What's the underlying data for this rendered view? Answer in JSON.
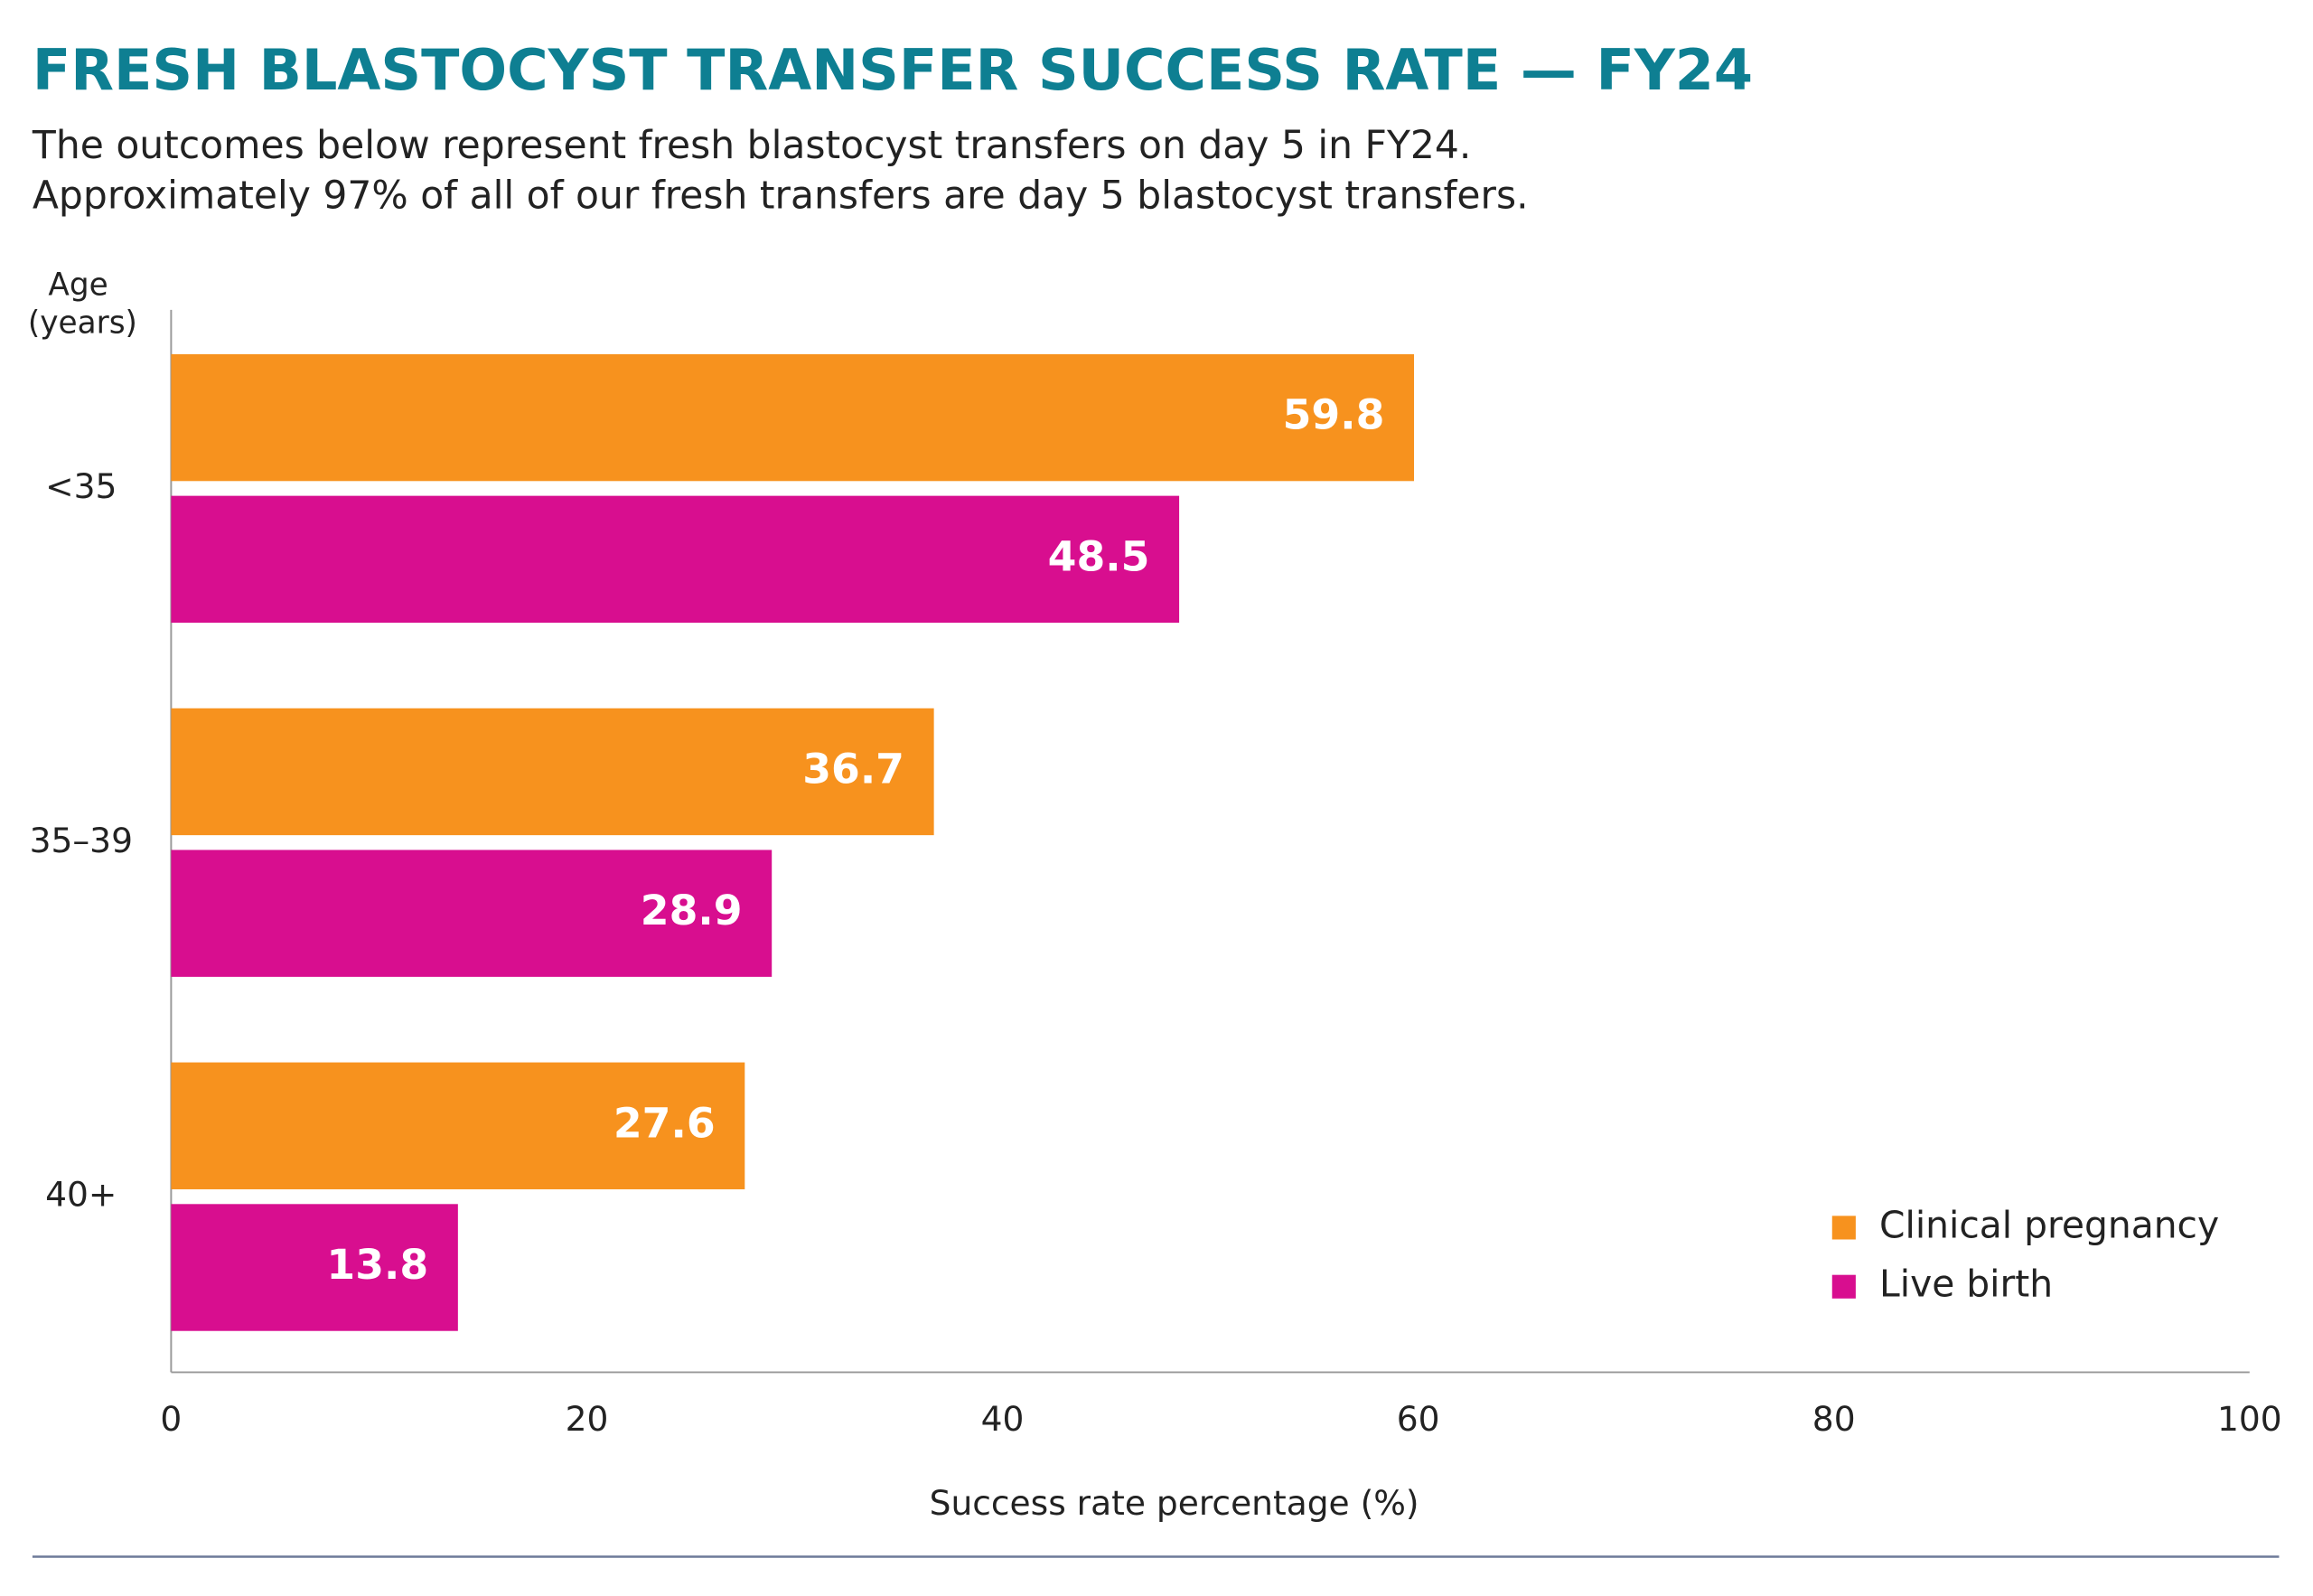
{
  "chart_data": {
    "type": "bar",
    "orientation": "horizontal",
    "title": "FRESH BLASTOCYST TRANSFER SUCCESS RATE — FY24",
    "subtitle": [
      "The outcomes below represent fresh blastocyst transfers on day 5 in FY24.",
      "Approximately 97% of all of our fresh transfers are day 5 blastocyst transfers."
    ],
    "y_label": [
      "Age",
      "(years)"
    ],
    "x_label": "Success rate percentage (%)",
    "categories": [
      "<35",
      "35–39",
      "40+"
    ],
    "series": [
      {
        "name": "Clinical pregnancy",
        "color": "#f7921e",
        "values": [
          59.8,
          36.7,
          27.6
        ]
      },
      {
        "name": "Live birth",
        "color": "#d80e8f",
        "values": [
          48.5,
          28.9,
          13.8
        ]
      }
    ],
    "xlim": [
      0,
      100
    ],
    "xticks": [
      0,
      20,
      40,
      60,
      80,
      100
    ],
    "legend": "lower right"
  }
}
